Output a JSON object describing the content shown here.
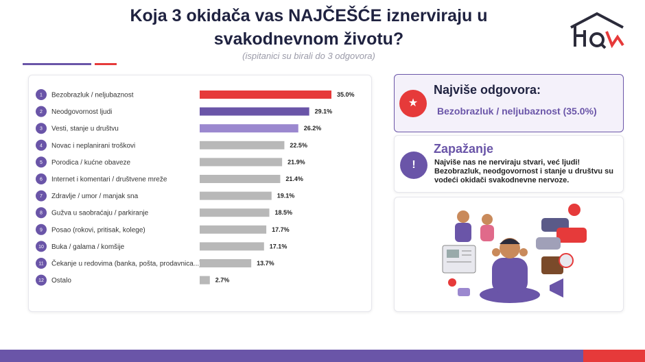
{
  "header": {
    "title_line1": "Koja 3 okidača vas NAJČEŠĆE iznerviraju u",
    "title_line2": "svakodnevnom životu?",
    "subtitle": "(ispitanici su birali do 3 odgovora)"
  },
  "colors": {
    "accent": "#6a55a8",
    "accent_light": "#9b88cf",
    "red": "#e63a3a",
    "gray": "#b8b8b8"
  },
  "chart_data": {
    "type": "bar",
    "orientation": "horizontal",
    "unit": "%",
    "xlim": [
      0,
      35
    ],
    "categories": [
      "Bezobrazluk / neljubaznost",
      "Neodgovornost ljudi",
      "Vesti, stanje u društvu",
      "Novac i neplanirani troškovi",
      "Porodica / kućne obaveze",
      "Internet i komentari / društvene mreže",
      "Zdravlje / umor / manjak sna",
      "Gužva u saobraćaju / parkiranje",
      "Posao (rokovi, pritisak, kolege)",
      "Buka / galama / komšije",
      "Čekanje u redovima (banka, pošta, prodavnica...)",
      "Ostalo"
    ],
    "values": [
      35.0,
      29.1,
      26.2,
      22.5,
      21.9,
      21.4,
      19.1,
      18.5,
      17.7,
      17.1,
      13.7,
      2.7
    ],
    "value_labels": [
      "35.0%",
      "29.1%",
      "26.2%",
      "22.5%",
      "21.9%",
      "21.4%",
      "19.1%",
      "18.5%",
      "17.7%",
      "17.1%",
      "13.7%",
      "2.7%"
    ],
    "ranks": [
      "1",
      "2",
      "3",
      "4",
      "5",
      "6",
      "7",
      "8",
      "9",
      "10",
      "11",
      "12"
    ],
    "bar_colors": [
      "#e63a3a",
      "#6a55a8",
      "#9b88cf",
      "#b8b8b8",
      "#b8b8b8",
      "#b8b8b8",
      "#b8b8b8",
      "#b8b8b8",
      "#b8b8b8",
      "#b8b8b8",
      "#b8b8b8",
      "#b8b8b8"
    ]
  },
  "top_card": {
    "heading": "Najviše odgovora:",
    "value": "Bezobrazluk / neljubaznost (35.0%)",
    "icon": "star-icon"
  },
  "insight_card": {
    "heading": "Zapažanje",
    "text": "Najviše nas ne nerviraju stvari, već ljudi! Bezobrazluk, neodgovornost i stanje u društvu su vodeći okidači svakodnevne nervoze.",
    "icon": "exclamation-icon"
  },
  "illustration": {
    "icon": "stressed-person-illustration"
  }
}
